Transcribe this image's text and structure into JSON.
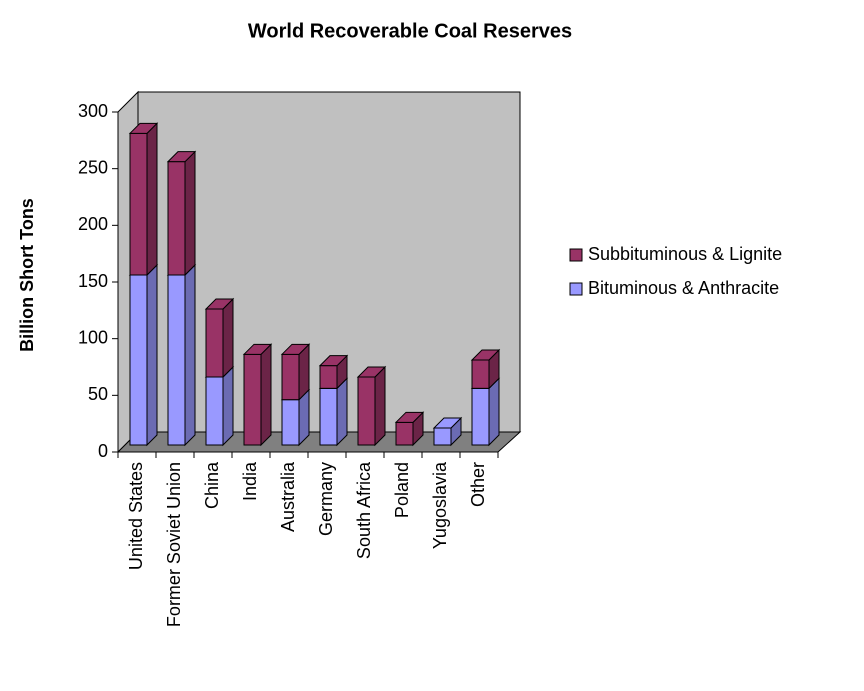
{
  "chart_data": {
    "type": "bar3d_stacked",
    "title": "World Recoverable Coal Reserves",
    "y_label": "Billion Short Tons",
    "categories": [
      "United States",
      "Former Soviet Union",
      "China",
      "India",
      "Australia",
      "Germany",
      "South Africa",
      "Poland",
      "Yugoslavia",
      "Other"
    ],
    "series": [
      {
        "name": "Bituminous & Anthracite",
        "color": "#9999ff",
        "values": [
          150,
          150,
          60,
          0,
          40,
          50,
          0,
          0,
          15,
          50
        ]
      },
      {
        "name": "Subbituminous & Lignite",
        "color": "#993366",
        "values": [
          125,
          100,
          60,
          80,
          40,
          20,
          60,
          20,
          0,
          25
        ]
      }
    ],
    "ylim": [
      0,
      300
    ],
    "yticks": [
      0,
      50,
      100,
      150,
      200,
      250,
      300
    ]
  }
}
